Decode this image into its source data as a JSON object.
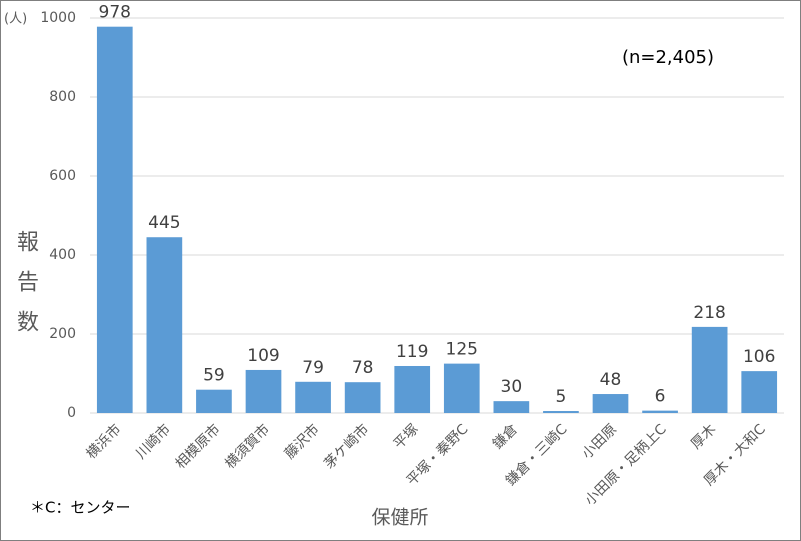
{
  "chart_data": {
    "type": "bar",
    "y_unit": "(人)",
    "ylabel": "報告数",
    "xlabel": "保健所",
    "annotation": "(n=2,405)",
    "footnote": "＊C：センター",
    "categories": [
      "横浜市",
      "川崎市",
      "相模原市",
      "横須賀市",
      "藤沢市",
      "茅ケ崎市",
      "平塚",
      "平塚・秦野C",
      "鎌倉",
      "鎌倉・三崎C",
      "小田原",
      "小田原・足柄上C",
      "厚木",
      "厚木・大和C"
    ],
    "values": [
      978,
      445,
      59,
      109,
      79,
      78,
      119,
      125,
      30,
      5,
      48,
      6,
      218,
      106
    ],
    "color": "#5b9bd5",
    "ylim": [
      0,
      1000
    ],
    "yticks": [
      0,
      200,
      400,
      600,
      800,
      1000
    ],
    "grid": true
  }
}
